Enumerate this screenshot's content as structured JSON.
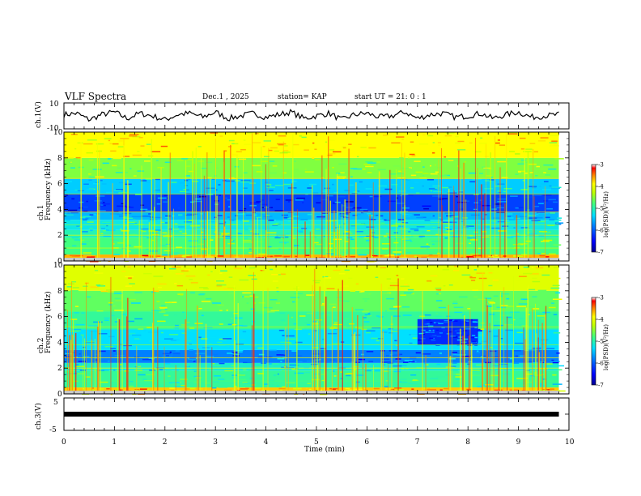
{
  "header": {
    "title": "VLF Spectra",
    "date": "Dec.1 , 2025",
    "station": "station= KAP",
    "start": "start  UT =   21: 0  : 1"
  },
  "colors": {
    "cmap": [
      "#000090",
      "#0000ff",
      "#0080ff",
      "#00e0ff",
      "#40ff80",
      "#c0ff00",
      "#ffff00",
      "#ff8000",
      "#ff0000",
      "#a00000"
    ]
  },
  "chart_data": [
    {
      "type": "line",
      "panel": "ch1-waveform",
      "ylabel": "ch.1(V)",
      "ylim": [
        -10,
        10
      ],
      "ytick_labels": [
        "10",
        "-10"
      ],
      "x": [
        0,
        0.25,
        0.5,
        0.75,
        1.0,
        1.25,
        1.5,
        1.75,
        2.0,
        2.25,
        2.5,
        2.75,
        3.0,
        3.25,
        3.5,
        3.75,
        4.0,
        4.25,
        4.5,
        4.75,
        5.0,
        5.25,
        5.5,
        5.75,
        6.0,
        6.25,
        6.5,
        6.75,
        7.0,
        7.25,
        7.5,
        7.75,
        8.0,
        8.25,
        8.5,
        8.75,
        9.0,
        9.25,
        9.5,
        9.8
      ],
      "y": [
        1,
        2,
        -3,
        1,
        3,
        -2,
        2,
        0,
        -3,
        1,
        2,
        -1,
        3,
        -2,
        0,
        2,
        -1,
        1,
        3,
        -2,
        0,
        2,
        -3,
        1,
        2,
        -1,
        0,
        3,
        -2,
        1,
        2,
        -1,
        0,
        2,
        -2,
        1,
        3,
        -1,
        0,
        1
      ]
    },
    {
      "type": "heatmap",
      "panel": "ch1-spectrogram",
      "ylabel": "ch.1\nFrequency (kHz)",
      "ylim": [
        0,
        10
      ],
      "yticks": [
        "0",
        "2",
        "4",
        "6",
        "8",
        "10"
      ],
      "bands": [
        {
          "f": [
            0,
            0.5
          ],
          "level": -3.8
        },
        {
          "f": [
            0.5,
            1.8
          ],
          "level": -4.9
        },
        {
          "f": [
            1.8,
            2.4
          ],
          "level": -5.1
        },
        {
          "f": [
            2.4,
            3.2
          ],
          "level": -5.3
        },
        {
          "f": [
            3.2,
            3.8
          ],
          "level": -5.6
        },
        {
          "f": [
            3.8,
            5.2
          ],
          "level": -6.2
        },
        {
          "f": [
            5.2,
            6.4
          ],
          "level": -5.5
        },
        {
          "f": [
            6.4,
            8.0
          ],
          "level": -4.7
        },
        {
          "f": [
            8.0,
            10
          ],
          "level": -4.1
        }
      ],
      "colorbar": {
        "label": "log(PSD)(V²/Hz)",
        "range": [
          -7,
          -3
        ],
        "ticks": [
          "-3",
          "-4",
          "-5",
          "-6",
          "-7"
        ]
      }
    },
    {
      "type": "heatmap",
      "panel": "ch2-spectrogram",
      "ylabel": "ch.2\nFrequency (kHz)",
      "ylim": [
        0,
        10
      ],
      "yticks": [
        "0",
        "2",
        "4",
        "6",
        "8",
        "10"
      ],
      "bands": [
        {
          "f": [
            0,
            0.5
          ],
          "level": -3.9
        },
        {
          "f": [
            0.5,
            1.8
          ],
          "level": -5.0
        },
        {
          "f": [
            1.8,
            2.4
          ],
          "level": -5.2
        },
        {
          "f": [
            2.4,
            3.4
          ],
          "level": -5.9
        },
        {
          "f": [
            3.4,
            5.0
          ],
          "level": -5.4
        },
        {
          "f": [
            5.0,
            6.4
          ],
          "level": -5.0
        },
        {
          "f": [
            6.4,
            8.0
          ],
          "level": -4.8
        },
        {
          "f": [
            8.0,
            10
          ],
          "level": -4.3
        }
      ],
      "patch": {
        "t": [
          7.0,
          8.2
        ],
        "f": [
          3.8,
          5.8
        ],
        "level": -6.3
      },
      "colorbar": {
        "label": "log(PSD)(V²/Hz)",
        "range": [
          -7,
          -3
        ],
        "ticks": [
          "-3",
          "-4",
          "-5",
          "-6",
          "-7"
        ]
      }
    },
    {
      "type": "line",
      "panel": "ch3-waveform",
      "ylabel": "ch.3(V)",
      "ylim": [
        -5,
        5
      ],
      "yticks": [
        "5",
        "0",
        "-5"
      ],
      "x": [
        0,
        9.8
      ],
      "y": [
        0,
        0
      ]
    }
  ],
  "xaxis": {
    "label": "Time (min)",
    "range": [
      0,
      10
    ],
    "ticks": [
      "0",
      "1",
      "2",
      "3",
      "4",
      "5",
      "6",
      "7",
      "8",
      "9",
      "10"
    ]
  }
}
